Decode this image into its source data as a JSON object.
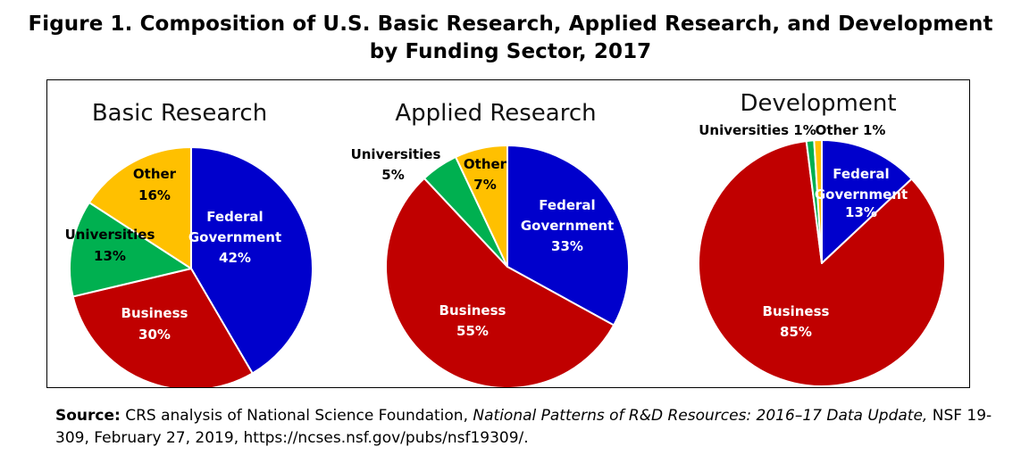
{
  "figure": {
    "title_line1": "Figure 1. Composition of U.S. Basic Research, Applied Research, and Development",
    "title_line2": "by Funding Sector, 2017"
  },
  "source": {
    "label": "Source:",
    "text_a": " CRS analysis of National Science Foundation, ",
    "publication": "National Patterns of R&D Resources: 2016–17 Data Update,",
    "text_b": " NSF 19-309, February 27, 2019, https://ncses.nsf.gov/pubs/nsf19309/."
  },
  "colors": {
    "federal": "#0000cc",
    "business": "#c00000",
    "universities": "#00b050",
    "other": "#ffc000"
  },
  "chart_data": [
    {
      "type": "pie",
      "title": "Basic Research",
      "slices": [
        {
          "name": "Federal Government",
          "label_lines": [
            "Federal",
            "Government"
          ],
          "pct_label": "42%",
          "value": 42,
          "color": "#0000cc",
          "label_color": "#ffffff"
        },
        {
          "name": "Business",
          "label_lines": [
            "Business"
          ],
          "pct_label": "30%",
          "value": 30,
          "color": "#c00000",
          "label_color": "#ffffff"
        },
        {
          "name": "Universities",
          "label_lines": [
            "Universities"
          ],
          "pct_label": "13%",
          "value": 13,
          "color": "#00b050",
          "label_color": "#000000"
        },
        {
          "name": "Other",
          "label_lines": [
            "Other"
          ],
          "pct_label": "16%",
          "value": 16,
          "color": "#ffc000",
          "label_color": "#000000"
        }
      ]
    },
    {
      "type": "pie",
      "title": "Applied Research",
      "slices": [
        {
          "name": "Federal Government",
          "label_lines": [
            "Federal",
            "Government"
          ],
          "pct_label": "33%",
          "value": 33,
          "color": "#0000cc",
          "label_color": "#ffffff"
        },
        {
          "name": "Business",
          "label_lines": [
            "Business"
          ],
          "pct_label": "55%",
          "value": 55,
          "color": "#c00000",
          "label_color": "#ffffff"
        },
        {
          "name": "Universities",
          "label_lines": [
            "Universities"
          ],
          "pct_label": "5%",
          "value": 5,
          "color": "#00b050",
          "label_color": "#000000"
        },
        {
          "name": "Other",
          "label_lines": [
            "Other"
          ],
          "pct_label": "7%",
          "value": 7,
          "color": "#ffc000",
          "label_color": "#000000"
        }
      ]
    },
    {
      "type": "pie",
      "title": "Development",
      "slices": [
        {
          "name": "Federal Government",
          "label_lines": [
            "Federal",
            "Government"
          ],
          "pct_label": "13%",
          "value": 13,
          "color": "#0000cc",
          "label_color": "#ffffff"
        },
        {
          "name": "Business",
          "label_lines": [
            "Business"
          ],
          "pct_label": "85%",
          "value": 85,
          "color": "#c00000",
          "label_color": "#ffffff"
        },
        {
          "name": "Universities",
          "label_lines": [
            "Universities 1%"
          ],
          "pct_label": "",
          "value": 1,
          "color": "#00b050",
          "label_color": "#000000"
        },
        {
          "name": "Other",
          "label_lines": [
            "Other 1%"
          ],
          "pct_label": "",
          "value": 1,
          "color": "#ffc000",
          "label_color": "#000000"
        }
      ]
    }
  ]
}
